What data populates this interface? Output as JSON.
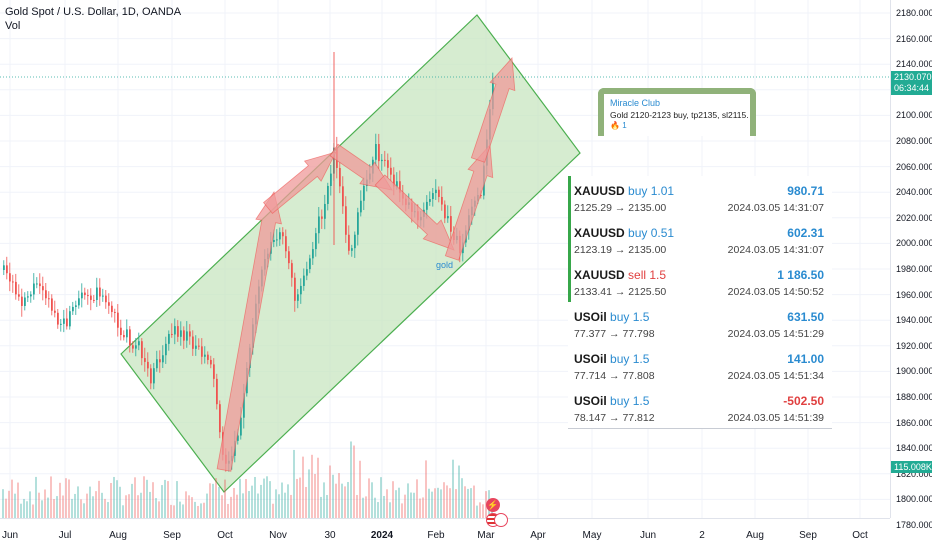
{
  "legend": {
    "title": "Gold Spot / U.S. Dollar, 1D, OANDA",
    "volume_label": "Vol"
  },
  "price_axis": {
    "ticks": [
      "2180.000",
      "2160.000",
      "2140.000",
      "2120.000",
      "2100.000",
      "2080.000",
      "2060.000",
      "2040.000",
      "2020.000",
      "2000.000",
      "1980.000",
      "1960.000",
      "1940.000",
      "1920.000",
      "1900.000",
      "1880.000",
      "1860.000",
      "1840.000",
      "1820.000",
      "1800.000",
      "1780.000"
    ],
    "last_price": "2130.070",
    "countdown": "06:34:44",
    "volume_value": "115.008K"
  },
  "time_axis": {
    "ticks": [
      {
        "label": "Jun",
        "bold": false
      },
      {
        "label": "Jul",
        "bold": false
      },
      {
        "label": "Aug",
        "bold": false
      },
      {
        "label": "Sep",
        "bold": false
      },
      {
        "label": "Oct",
        "bold": false
      },
      {
        "label": "Nov",
        "bold": false
      },
      {
        "label": "30",
        "bold": false
      },
      {
        "label": "2024",
        "bold": true
      },
      {
        "label": "Feb",
        "bold": false
      },
      {
        "label": "Mar",
        "bold": false
      },
      {
        "label": "Apr",
        "bold": false
      },
      {
        "label": "May",
        "bold": false
      },
      {
        "label": "Jun",
        "bold": false
      },
      {
        "label": "2",
        "bold": false
      },
      {
        "label": "Aug",
        "bold": false
      },
      {
        "label": "Sep",
        "bold": false
      },
      {
        "label": "Oct",
        "bold": false
      }
    ]
  },
  "annotation_label": "gold",
  "telegram": {
    "channel": "Miracle Club",
    "message": "Gold 2120-2123 buy, tp2135, sl2115.",
    "reaction_icon": "fire-icon",
    "reaction_count": "1"
  },
  "trades": [
    {
      "symbol": "XAUUSD",
      "side": "buy",
      "volume": "1.01",
      "prices": "2125.29 → 2135.00",
      "profit": "980.71",
      "time": "2024.03.05 14:31:07",
      "highlight": true,
      "negative": false
    },
    {
      "symbol": "XAUUSD",
      "side": "buy",
      "volume": "0.51",
      "prices": "2123.19 → 2135.00",
      "profit": "602.31",
      "time": "2024.03.05 14:31:07",
      "highlight": true,
      "negative": false
    },
    {
      "symbol": "XAUUSD",
      "side": "sell",
      "volume": "1.5",
      "prices": "2133.41 → 2125.50",
      "profit": "1 186.50",
      "time": "2024.03.05 14:50:52",
      "highlight": true,
      "negative": false
    },
    {
      "symbol": "USOil",
      "side": "buy",
      "volume": "1.5",
      "prices": "77.377 → 77.798",
      "profit": "631.50",
      "time": "2024.03.05 14:51:29",
      "highlight": false,
      "negative": false
    },
    {
      "symbol": "USOil",
      "side": "buy",
      "volume": "1.5",
      "prices": "77.714 → 77.808",
      "profit": "141.00",
      "time": "2024.03.05 14:51:34",
      "highlight": false,
      "negative": false
    },
    {
      "symbol": "USOil",
      "side": "buy",
      "volume": "1.5",
      "prices": "78.147 → 77.812",
      "profit": "-502.50",
      "time": "2024.03.05 14:51:39",
      "highlight": false,
      "negative": true
    }
  ],
  "colors": {
    "up": "#26a69a",
    "down": "#ef5350",
    "channel_fill": "#c8e6c0",
    "channel_stroke": "#4caf50",
    "arrow": "#ef9a9a"
  }
}
